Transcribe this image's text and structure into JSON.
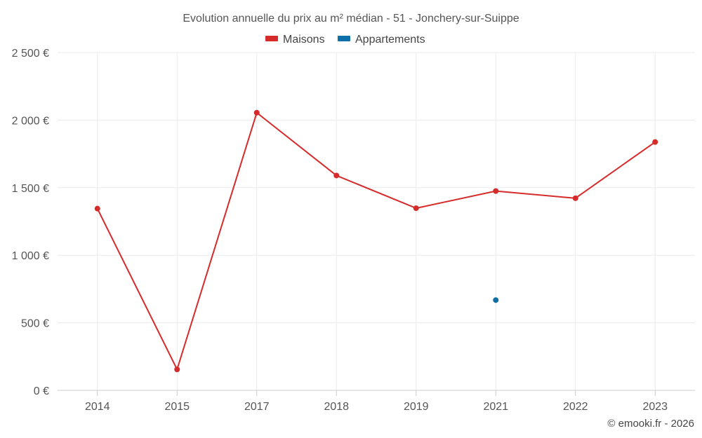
{
  "chart_data": {
    "type": "line",
    "title": "Evolution annuelle du prix au m² médian - 51 - Jonchery-sur-Suippe",
    "categories": [
      "2014",
      "2015",
      "2017",
      "2018",
      "2019",
      "2021",
      "2022",
      "2023"
    ],
    "series": [
      {
        "name": "Maisons",
        "color": "#d62b2b",
        "values": [
          1345,
          155,
          2055,
          1590,
          1348,
          1475,
          1422,
          1838
        ]
      },
      {
        "name": "Appartements",
        "color": "#0f6fa8",
        "values": [
          null,
          null,
          null,
          null,
          null,
          668,
          null,
          null
        ]
      }
    ],
    "ylim": [
      0,
      2500
    ],
    "yticks": [
      0,
      500,
      1000,
      1500,
      2000,
      2500
    ],
    "ytick_labels": [
      "0 €",
      "500 €",
      "1 000 €",
      "1 500 €",
      "2 000 €",
      "2 500 €"
    ],
    "xlabel": "",
    "ylabel": "",
    "grid": true,
    "legend": "top-center"
  },
  "credit": "© emooki.fr - 2026"
}
